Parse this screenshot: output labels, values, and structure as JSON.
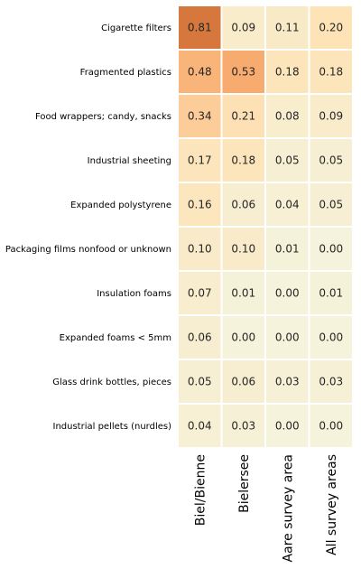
{
  "chart_data": {
    "type": "heatmap",
    "rows": [
      "Cigarette filters",
      "Fragmented plastics",
      "Food wrappers; candy, snacks",
      "Industrial sheeting",
      "Expanded polystyrene",
      "Packaging films nonfood or unknown",
      "Insulation foams",
      "Expanded foams < 5mm",
      "Glass drink bottles, pieces",
      "Industrial pellets (nurdles)"
    ],
    "columns": [
      "Biel/Bienne",
      "Bielersee",
      "Aare survey area",
      "All survey areas"
    ],
    "values": [
      [
        "0.81",
        "0.09",
        "0.11",
        "0.20"
      ],
      [
        "0.48",
        "0.53",
        "0.18",
        "0.18"
      ],
      [
        "0.34",
        "0.21",
        "0.08",
        "0.09"
      ],
      [
        "0.17",
        "0.18",
        "0.05",
        "0.05"
      ],
      [
        "0.16",
        "0.06",
        "0.04",
        "0.05"
      ],
      [
        "0.10",
        "0.10",
        "0.01",
        "0.00"
      ],
      [
        "0.07",
        "0.01",
        "0.00",
        "0.01"
      ],
      [
        "0.06",
        "0.00",
        "0.00",
        "0.00"
      ],
      [
        "0.05",
        "0.06",
        "0.03",
        "0.03"
      ],
      [
        "0.04",
        "0.03",
        "0.00",
        "0.00"
      ]
    ],
    "color_range": [
      0,
      1
    ],
    "color_stops": [
      "#f5f3dc",
      "#fde3b6",
      "#fbc48c",
      "#f59d5e",
      "#d97a3e",
      "#9c4a24"
    ],
    "grid_color": "#ffffff",
    "legend": "none",
    "title": "",
    "xlabel": "",
    "ylabel": ""
  }
}
